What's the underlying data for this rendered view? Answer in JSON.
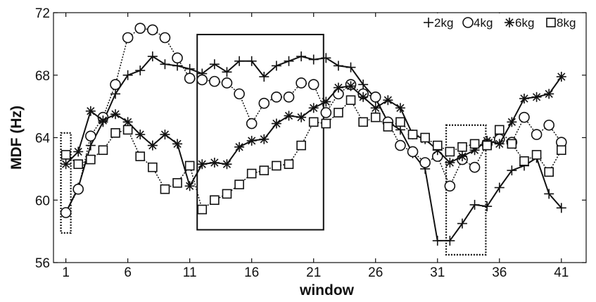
{
  "chart_data": {
    "type": "line",
    "title": "",
    "xlabel": "window",
    "ylabel": "MDF (Hz)",
    "xlim": [
      0,
      43
    ],
    "ylim": [
      56,
      72
    ],
    "xticks": [
      1,
      6,
      11,
      16,
      21,
      26,
      31,
      36,
      41
    ],
    "yticks": [
      56,
      60,
      64,
      68,
      72
    ],
    "grid": false,
    "legend_position": "top-right",
    "series": [
      {
        "name": "2kg",
        "marker": "plus",
        "line": "solid",
        "x": [
          1,
          2,
          3,
          4,
          5,
          6,
          7,
          8,
          9,
          10,
          11,
          12,
          13,
          14,
          15,
          16,
          17,
          18,
          19,
          20,
          21,
          22,
          23,
          24,
          25,
          26,
          27,
          28,
          29,
          30,
          31,
          32,
          33,
          34,
          35,
          36,
          37,
          38,
          39,
          40,
          41
        ],
        "values": [
          59.2,
          60.8,
          63.5,
          65.0,
          66.8,
          68.0,
          68.3,
          69.2,
          68.7,
          68.6,
          68.4,
          68.1,
          68.7,
          68.2,
          68.9,
          68.9,
          67.9,
          68.6,
          68.9,
          69.2,
          69.0,
          69.1,
          68.6,
          68.5,
          67.4,
          66.5,
          65.0,
          64.5,
          63.0,
          62.0,
          57.4,
          57.4,
          58.5,
          59.7,
          59.6,
          60.8,
          61.9,
          62.2,
          62.7,
          60.4,
          59.5
        ]
      },
      {
        "name": "4kg",
        "marker": "circle",
        "line": "dotted",
        "x": [
          1,
          2,
          3,
          4,
          5,
          6,
          7,
          8,
          9,
          10,
          11,
          12,
          13,
          14,
          15,
          16,
          17,
          18,
          19,
          20,
          21,
          22,
          23,
          24,
          25,
          26,
          27,
          28,
          29,
          30,
          31,
          32,
          33,
          34,
          35,
          36,
          37,
          38,
          39,
          40,
          41
        ],
        "values": [
          59.2,
          60.7,
          64.1,
          65.3,
          67.4,
          70.4,
          71.0,
          70.9,
          70.4,
          69.1,
          67.8,
          67.7,
          67.6,
          67.5,
          66.8,
          64.9,
          66.2,
          66.6,
          66.6,
          67.5,
          67.4,
          65.6,
          66.8,
          67.4,
          66.8,
          66.6,
          65.0,
          63.5,
          63.1,
          62.4,
          62.8,
          60.9,
          62.6,
          62.1,
          63.6,
          63.9,
          63.7,
          65.3,
          64.2,
          64.8,
          63.7
        ]
      },
      {
        "name": "6kg",
        "marker": "asterisk",
        "line": "solid",
        "x": [
          1,
          2,
          3,
          4,
          5,
          6,
          7,
          8,
          9,
          10,
          11,
          12,
          13,
          14,
          15,
          16,
          17,
          18,
          19,
          20,
          21,
          22,
          23,
          24,
          25,
          26,
          27,
          28,
          29,
          30,
          31,
          32,
          33,
          34,
          35,
          36,
          37,
          38,
          39,
          40,
          41
        ],
        "values": [
          62.3,
          63.1,
          65.7,
          65.1,
          65.5,
          65.0,
          64.2,
          63.5,
          64.2,
          63.6,
          60.9,
          62.3,
          62.4,
          62.3,
          63.4,
          63.8,
          63.9,
          64.9,
          65.4,
          65.3,
          65.9,
          66.3,
          67.2,
          67.3,
          66.6,
          65.9,
          66.4,
          65.9,
          64.2,
          63.9,
          63.2,
          62.4,
          62.8,
          63.2,
          63.8,
          63.6,
          65.0,
          66.5,
          66.6,
          66.8,
          67.9
        ]
      },
      {
        "name": "8kg",
        "marker": "square",
        "line": "dotted",
        "x": [
          1,
          2,
          3,
          4,
          5,
          6,
          7,
          8,
          9,
          10,
          11,
          12,
          13,
          14,
          15,
          16,
          17,
          18,
          19,
          20,
          21,
          22,
          23,
          24,
          25,
          26,
          27,
          28,
          29,
          30,
          31,
          32,
          33,
          34,
          35,
          36,
          37,
          38,
          39,
          40,
          41
        ],
        "values": [
          62.9,
          62.3,
          62.6,
          63.2,
          64.3,
          64.5,
          62.8,
          62.1,
          60.7,
          61.1,
          62.2,
          59.4,
          60.0,
          60.4,
          61.0,
          61.7,
          61.9,
          62.2,
          62.3,
          63.5,
          65.0,
          64.9,
          65.6,
          66.4,
          65.0,
          65.3,
          64.7,
          65.0,
          64.2,
          64.0,
          63.5,
          63.1,
          63.4,
          63.6,
          63.5,
          64.5,
          63.6,
          62.5,
          62.9,
          61.8,
          63.2
        ]
      }
    ],
    "annotations": [
      {
        "type": "rect",
        "line": "dotted",
        "x_range": [
          0.6,
          1.4
        ],
        "y_range": [
          57.9,
          64.3
        ]
      },
      {
        "type": "rect",
        "line": "solid",
        "x_range": [
          11.6,
          21.8
        ],
        "y_range": [
          58.1,
          70.6
        ]
      },
      {
        "type": "rect",
        "line": "dotted",
        "x_range": [
          31.7,
          34.9
        ],
        "y_range": [
          56.5,
          64.8
        ]
      }
    ]
  }
}
